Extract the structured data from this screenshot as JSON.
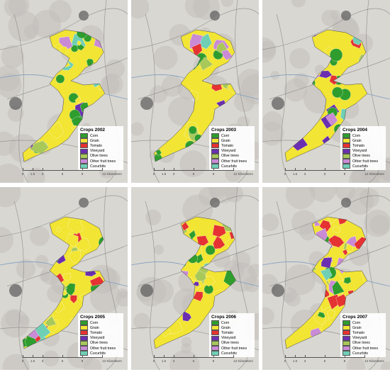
{
  "crops": [
    {
      "name": "Corn",
      "color": "#2e9d2e"
    },
    {
      "name": "Grain",
      "color": "#f2e533"
    },
    {
      "name": "Tomato",
      "color": "#e53232"
    },
    {
      "name": "Vineyard",
      "color": "#6a2fb0"
    },
    {
      "name": "Olive trees",
      "color": "#a8c85a"
    },
    {
      "name": "Other fruit trees",
      "color": "#c98ad6"
    },
    {
      "name": "Cucurbits",
      "color": "#6fcfb5"
    }
  ],
  "panels": [
    {
      "title": "Crops 2002"
    },
    {
      "title": "Crops 2003"
    },
    {
      "title": "Crops 2004"
    },
    {
      "title": "Crops 2005"
    },
    {
      "title": "Crops 2006"
    },
    {
      "title": "Crops 2007"
    }
  ],
  "scale": {
    "ticks": [
      "0",
      "1.5",
      "3",
      "6",
      "9",
      "12 Kilometers"
    ]
  }
}
